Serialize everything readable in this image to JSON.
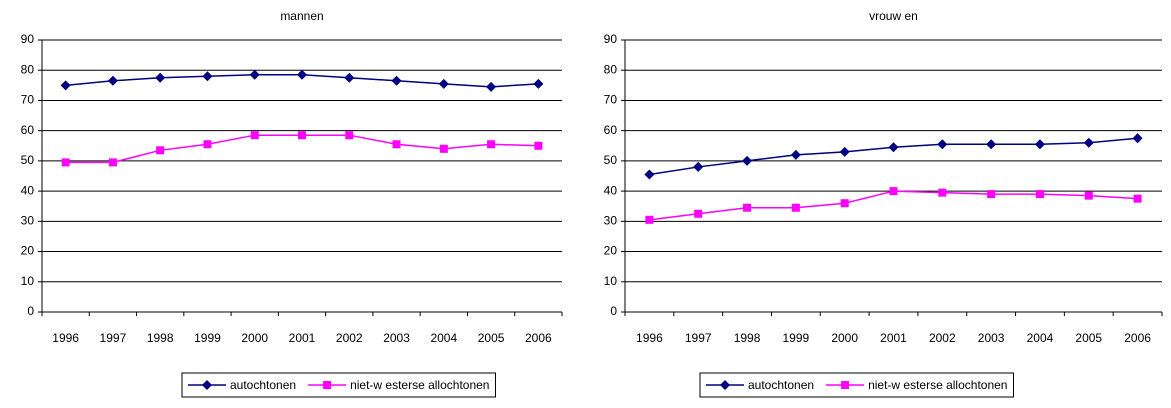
{
  "chart_data": [
    {
      "type": "line",
      "title": "mannen",
      "categories": [
        "1996",
        "1997",
        "1998",
        "1999",
        "2000",
        "2001",
        "2002",
        "2003",
        "2004",
        "2005",
        "2006"
      ],
      "series": [
        {
          "name": "autochtonen",
          "color": "#000080",
          "marker": "diamond",
          "values": [
            75,
            76.5,
            77.5,
            78,
            78.5,
            78.5,
            77.5,
            76.5,
            75.5,
            74.5,
            75.5
          ]
        },
        {
          "name": "niet-w esterse allochtonen",
          "color": "#ff00ff",
          "marker": "square",
          "values": [
            49.5,
            49.5,
            53.5,
            55.5,
            58.5,
            58.5,
            58.5,
            55.5,
            54,
            55.5,
            55
          ]
        }
      ],
      "ylim": [
        0,
        90
      ],
      "yticks": [
        0,
        10,
        20,
        30,
        40,
        50,
        60,
        70,
        80,
        90
      ],
      "grid": true,
      "legend": "bottom"
    },
    {
      "type": "line",
      "title": "vrouw en",
      "categories": [
        "1996",
        "1997",
        "1998",
        "1999",
        "2000",
        "2001",
        "2002",
        "2003",
        "2004",
        "2005",
        "2006"
      ],
      "series": [
        {
          "name": "autochtonen",
          "color": "#000080",
          "marker": "diamond",
          "values": [
            45.5,
            48,
            50,
            52,
            53,
            54.5,
            55.5,
            55.5,
            55.5,
            56,
            57.5
          ]
        },
        {
          "name": "niet-w esterse allochtonen",
          "color": "#ff00ff",
          "marker": "square",
          "values": [
            30.5,
            32.5,
            34.5,
            34.5,
            36,
            40,
            39.5,
            39,
            39,
            38.5,
            37.5
          ]
        }
      ],
      "ylim": [
        0,
        90
      ],
      "yticks": [
        0,
        10,
        20,
        30,
        40,
        50,
        60,
        70,
        80,
        90
      ],
      "grid": true,
      "legend": "bottom"
    }
  ]
}
